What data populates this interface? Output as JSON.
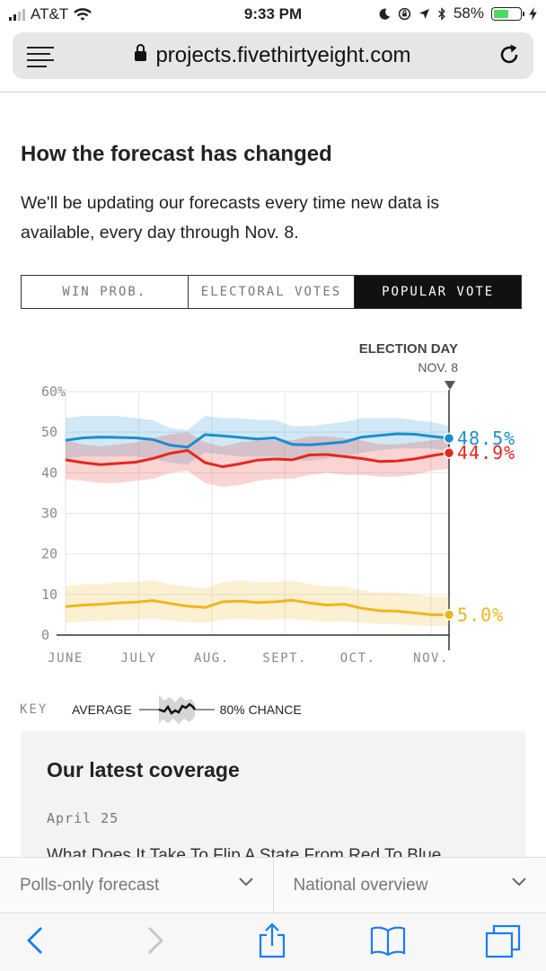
{
  "status": {
    "carrier": "AT&T",
    "time": "9:33 PM",
    "battery": "58%",
    "battery_level": 0.58
  },
  "browser": {
    "url": "projects.fivethirtyeight.com"
  },
  "section": {
    "title": "How the forecast has changed",
    "description": "We'll be updating our forecasts every time new data is available, every day through Nov. 8."
  },
  "tabs": [
    "WIN PROB.",
    "ELECTORAL VOTES",
    "POPULAR VOTE"
  ],
  "chart_data": {
    "type": "line",
    "x": [
      "Jun 8",
      "Jun 15",
      "Jun 22",
      "Jun 29",
      "Jul 6",
      "Jul 13",
      "Jul 20",
      "Jul 27",
      "Aug 3",
      "Aug 10",
      "Aug 17",
      "Aug 24",
      "Aug 31",
      "Sep 7",
      "Sep 14",
      "Sep 21",
      "Sep 28",
      "Oct 5",
      "Oct 12",
      "Oct 19",
      "Oct 26",
      "Nov 2",
      "Nov 8"
    ],
    "xtick_labels": [
      "JUNE",
      "JULY",
      "AUG.",
      "SEPT.",
      "OCT.",
      "NOV."
    ],
    "ytick_labels": [
      "0",
      "10",
      "20",
      "30",
      "40",
      "50",
      "60%"
    ],
    "ylim": [
      0,
      60
    ],
    "grid": true,
    "series": [
      {
        "color": "#1a8ed1",
        "values": [
          48,
          48.6,
          48.8,
          48.7,
          48.6,
          48.2,
          46.8,
          46.3,
          49.4,
          49.1,
          48.7,
          48.3,
          48.6,
          47.0,
          46.9,
          47.2,
          47.6,
          48.8,
          49.2,
          49.6,
          49.5,
          49.0,
          48.5
        ],
        "lower": [
          43.5,
          44,
          44,
          44,
          44,
          43.5,
          42.5,
          42,
          45,
          44.5,
          44,
          44,
          44,
          43,
          43,
          43.5,
          44,
          45,
          45.5,
          46,
          46,
          46,
          45.5
        ],
        "upper": [
          53.5,
          54,
          54,
          54,
          53.5,
          53,
          51,
          50.5,
          54,
          53.5,
          53.5,
          53,
          53,
          51.5,
          51.5,
          52,
          52.5,
          53.5,
          53.5,
          53.5,
          53,
          52.5,
          51.5
        ],
        "end_label": "48.5%"
      },
      {
        "color": "#e8261c",
        "values": [
          43.2,
          42.5,
          42.0,
          42.3,
          42.6,
          43.5,
          44.8,
          45.5,
          42.5,
          41.5,
          42.2,
          43.1,
          43.4,
          43.2,
          44.4,
          44.5,
          44.0,
          43.5,
          42.8,
          42.9,
          43.4,
          44.2,
          44.9
        ],
        "lower": [
          38.5,
          38,
          37.5,
          37.5,
          38,
          38.5,
          40,
          40.5,
          37.5,
          36.5,
          37,
          38,
          38.5,
          38.5,
          39.5,
          40,
          39.5,
          39.5,
          39,
          39,
          39.5,
          40.5,
          41
        ],
        "upper": [
          48,
          47,
          46.5,
          47,
          47.5,
          48.5,
          49.5,
          50,
          47.5,
          46.5,
          47.5,
          48,
          48,
          48,
          49,
          49,
          48.5,
          48,
          47,
          47,
          47.5,
          48,
          48.5
        ],
        "end_label": "44.9%"
      },
      {
        "color": "#f0b51c",
        "values": [
          7.0,
          7.4,
          7.6,
          7.9,
          8.1,
          8.5,
          7.8,
          7.1,
          6.8,
          8.2,
          8.4,
          8.0,
          8.2,
          8.6,
          7.9,
          7.4,
          7.6,
          6.6,
          6.0,
          5.9,
          5.5,
          5.0,
          5.0
        ],
        "lower": [
          3,
          3.3,
          3.5,
          3.7,
          3.8,
          4,
          3.6,
          3.2,
          3,
          3.8,
          4,
          3.8,
          3.8,
          4,
          3.6,
          3.3,
          3.4,
          3,
          2.7,
          2.6,
          2.4,
          2.2,
          2.2
        ],
        "upper": [
          12,
          12.5,
          12.5,
          13,
          13,
          13.5,
          12.5,
          12,
          11.5,
          13,
          13.5,
          13,
          13,
          13.5,
          12.5,
          12,
          12,
          11,
          10.5,
          10.5,
          10,
          9.5,
          9.5
        ],
        "end_label": "5.0%"
      }
    ],
    "annotations": [
      "ELECTION DAY",
      "NOV. 8"
    ],
    "key": {
      "label": "KEY",
      "average": "AVERAGE",
      "chance": "80% CHANCE"
    }
  },
  "coverage": {
    "title": "Our latest coverage",
    "date": "April 25",
    "headline": "What Does It Take To Flip A State From Red To Blue"
  },
  "dropdowns": [
    "Polls-only forecast",
    "National overview"
  ]
}
